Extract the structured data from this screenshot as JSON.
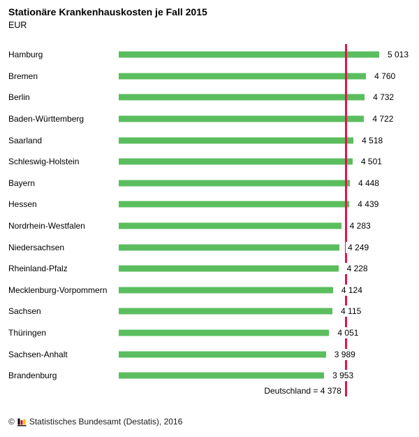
{
  "title": "Stationäre Krankenhauskosten je Fall 2015",
  "subtitle": "EUR",
  "chart_data": {
    "type": "bar",
    "orientation": "horizontal",
    "title": "Stationäre Krankenhauskosten je Fall 2015",
    "unit": "EUR",
    "categories": [
      "Hamburg",
      "Bremen",
      "Berlin",
      "Baden-Württemberg",
      "Saarland",
      "Schleswig-Holstein",
      "Bayern",
      "Hessen",
      "Nordrhein-Westfalen",
      "Niedersachsen",
      "Rheinland-Pfalz",
      "Mecklenburg-Vorpommern",
      "Sachsen",
      "Thüringen",
      "Sachsen-Anhalt",
      "Brandenburg"
    ],
    "values": [
      5013,
      4760,
      4732,
      4722,
      4518,
      4501,
      4448,
      4439,
      4283,
      4249,
      4228,
      4124,
      4115,
      4051,
      3989,
      3953
    ],
    "value_labels": [
      "5 013",
      "4 760",
      "4 732",
      "4 722",
      "4 518",
      "4 501",
      "4 448",
      "4 439",
      "4 283",
      "4 249",
      "4 228",
      "4 124",
      "4 115",
      "4 051",
      "3 989",
      "3 953"
    ],
    "reference": {
      "name": "Deutschland",
      "value": 4378,
      "label_text": "Deutschland = 4 378"
    },
    "xlim": [
      0,
      5013
    ],
    "grid": false,
    "legend": "none",
    "colors": {
      "bar": "#5abe5f",
      "reference_line": "#e1144b"
    }
  },
  "footer": {
    "copyright": "©",
    "source": "Statistisches Bundesamt (Destatis), 2016",
    "logo": "destatis-bars-icon"
  }
}
